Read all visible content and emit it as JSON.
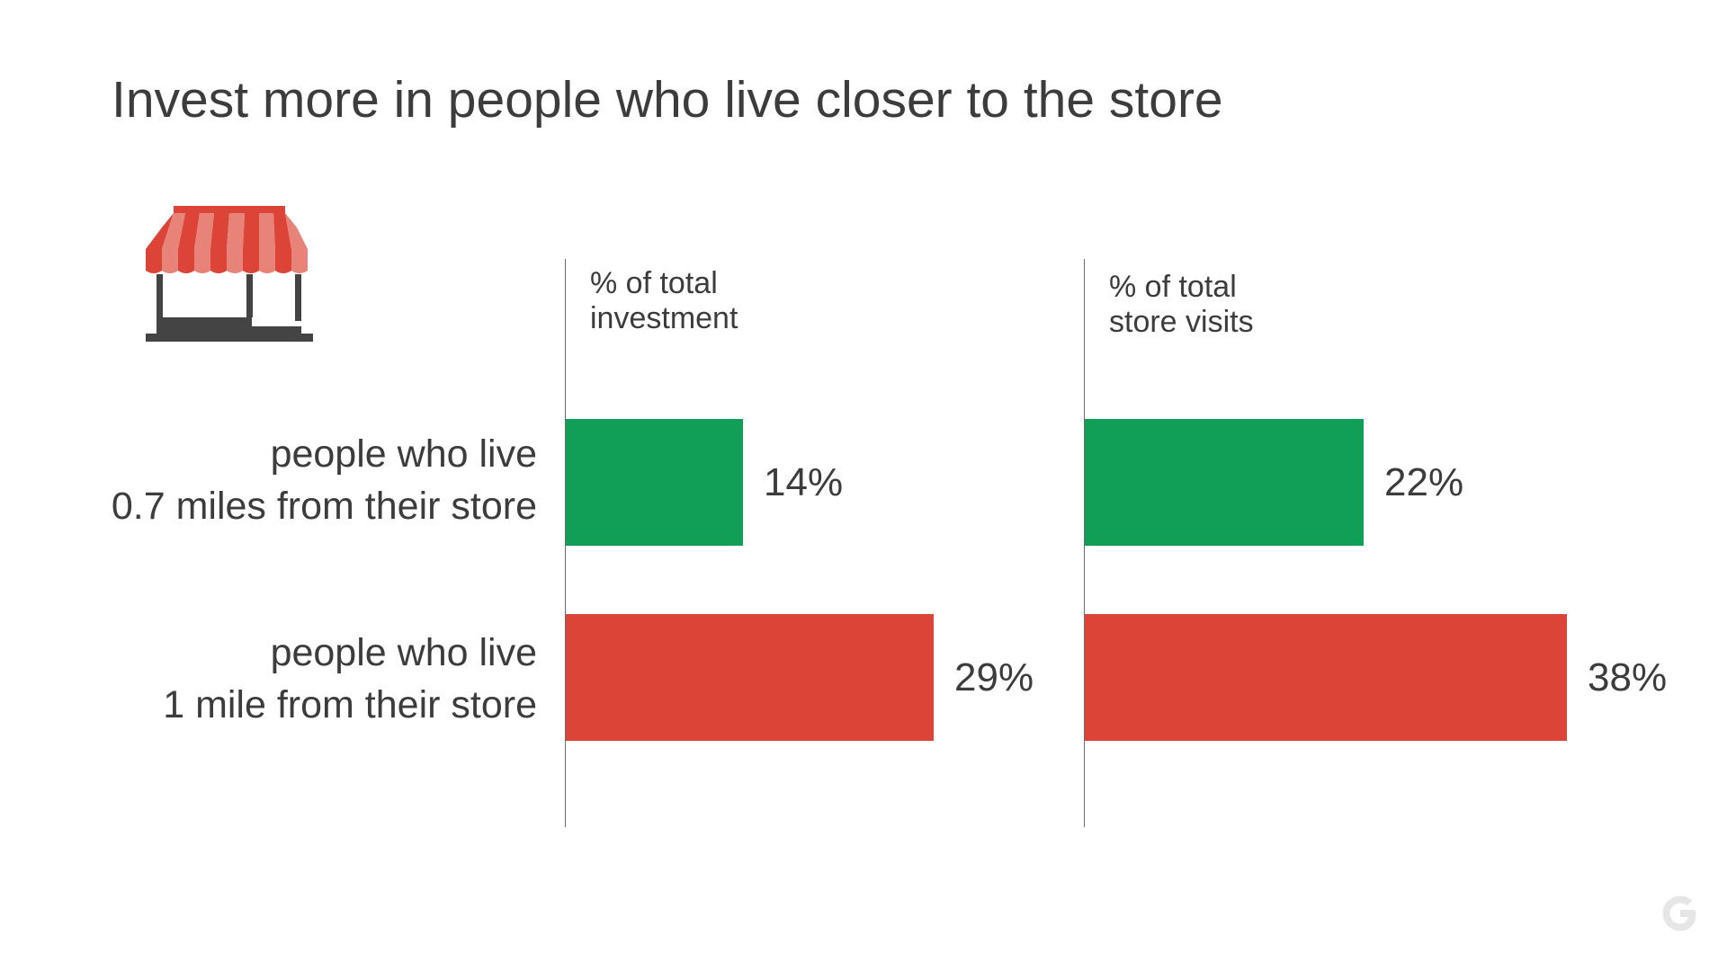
{
  "title": "Invest more in people who live closer to the store",
  "icons": {
    "store": "storefront-icon",
    "brand": "google-g-logo"
  },
  "colors": {
    "green": "#119f57",
    "red": "#dd4438",
    "awning_dark": "#dd4438",
    "awning_light": "#e8837a",
    "text": "#3c3c3c",
    "structure": "#444444",
    "logo": "#e6e6e6"
  },
  "rows": [
    {
      "line1": "people who live",
      "line2": "0.7 miles from their store"
    },
    {
      "line1": "people who live",
      "line2": "1 mile from their store"
    }
  ],
  "chart_data": {
    "type": "bar",
    "orientation": "horizontal",
    "title": "Invest more in people who live closer to the store",
    "categories": [
      "people who live 0.7 miles from their store",
      "people who live 1 mile from their store"
    ],
    "panels": [
      {
        "header": [
          "% of total",
          "investment"
        ],
        "values": [
          14,
          29
        ],
        "labels": [
          "14%",
          "29%"
        ]
      },
      {
        "header": [
          "% of total",
          "store visits"
        ],
        "values": [
          22,
          38
        ],
        "labels": [
          "22%",
          "38%"
        ]
      }
    ],
    "bar_colors": [
      "#119f57",
      "#dd4438"
    ],
    "grid": false,
    "legend": "none"
  }
}
